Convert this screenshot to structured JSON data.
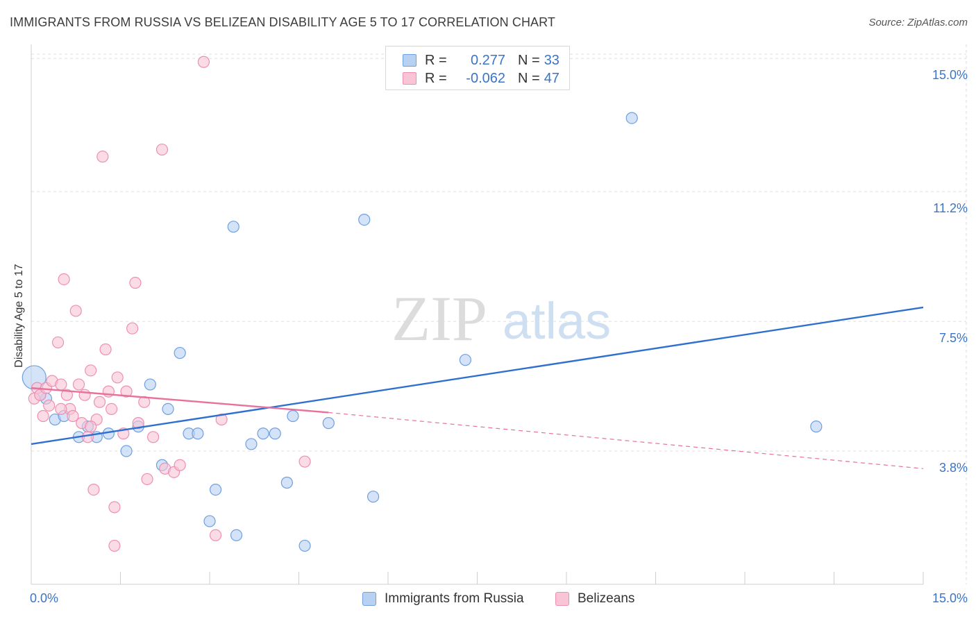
{
  "header": {
    "title": "IMMIGRANTS FROM RUSSIA VS BELIZEAN DISABILITY AGE 5 TO 17 CORRELATION CHART",
    "source": "Source: ZipAtlas.com"
  },
  "watermark": {
    "zip": "ZIP",
    "atlas": "atlas"
  },
  "legend_top": {
    "rows": [
      {
        "r_label": "R =",
        "r_value": "0.277",
        "n_label": "N =",
        "n_value": "33"
      },
      {
        "r_label": "R =",
        "r_value": "-0.062",
        "n_label": "N =",
        "n_value": "47"
      }
    ]
  },
  "colors": {
    "blue_fill": "#b8d0f2",
    "blue_stroke": "#6f9fe0",
    "blue_line": "#2f6fcf",
    "pink_fill": "#f8c4d6",
    "pink_stroke": "#ee8fb0",
    "pink_line": "#e8709a",
    "grid": "#dedede",
    "axis_text": "#3a74c8"
  },
  "chart_data": {
    "type": "scatter",
    "title": "IMMIGRANTS FROM RUSSIA VS BELIZEAN DISABILITY AGE 5 TO 17 CORRELATION CHART",
    "xlabel": "",
    "ylabel": "Disability Age 5 to 17",
    "xlim": [
      0,
      15
    ],
    "ylim": [
      0,
      15.4
    ],
    "x_tick_labels": [
      "0.0%",
      "15.0%"
    ],
    "y_ticks": [
      3.8,
      7.5,
      11.2,
      15.0
    ],
    "y_tick_labels": [
      "3.8%",
      "7.5%",
      "11.2%",
      "15.0%"
    ],
    "series": [
      {
        "name": "Immigrants from Russia",
        "color": "#6f9fe0",
        "points": [
          [
            0.05,
            5.9
          ],
          [
            0.25,
            5.3
          ],
          [
            0.4,
            4.7
          ],
          [
            0.55,
            4.8
          ],
          [
            0.8,
            4.2
          ],
          [
            0.95,
            4.5
          ],
          [
            1.3,
            4.3
          ],
          [
            1.6,
            3.8
          ],
          [
            1.8,
            4.5
          ],
          [
            2.0,
            5.7
          ],
          [
            2.2,
            3.4
          ],
          [
            2.3,
            5.0
          ],
          [
            2.5,
            6.6
          ],
          [
            2.65,
            4.3
          ],
          [
            2.8,
            4.3
          ],
          [
            3.1,
            2.7
          ],
          [
            3.0,
            1.8
          ],
          [
            3.4,
            10.2
          ],
          [
            3.45,
            1.4
          ],
          [
            3.7,
            4.0
          ],
          [
            3.9,
            4.3
          ],
          [
            4.1,
            4.3
          ],
          [
            4.3,
            2.9
          ],
          [
            4.4,
            4.8
          ],
          [
            4.6,
            1.1
          ],
          [
            5.0,
            4.6
          ],
          [
            5.6,
            10.4
          ],
          [
            5.75,
            2.5
          ],
          [
            7.3,
            6.4
          ],
          [
            10.1,
            13.3
          ],
          [
            13.2,
            4.5
          ],
          [
            0.15,
            5.4
          ],
          [
            1.1,
            4.2
          ]
        ]
      },
      {
        "name": "Belizeans",
        "color": "#ee8fb0",
        "points": [
          [
            0.05,
            5.3
          ],
          [
            0.1,
            5.6
          ],
          [
            0.15,
            5.4
          ],
          [
            0.2,
            4.8
          ],
          [
            0.25,
            5.6
          ],
          [
            0.3,
            5.1
          ],
          [
            0.35,
            5.8
          ],
          [
            0.45,
            6.9
          ],
          [
            0.5,
            5.7
          ],
          [
            0.55,
            8.7
          ],
          [
            0.6,
            5.4
          ],
          [
            0.65,
            5.0
          ],
          [
            0.75,
            7.8
          ],
          [
            0.8,
            5.7
          ],
          [
            0.85,
            4.6
          ],
          [
            0.9,
            5.4
          ],
          [
            0.95,
            4.2
          ],
          [
            1.0,
            6.1
          ],
          [
            1.05,
            2.7
          ],
          [
            1.1,
            4.7
          ],
          [
            1.15,
            5.2
          ],
          [
            1.2,
            12.2
          ],
          [
            1.25,
            6.7
          ],
          [
            1.3,
            5.5
          ],
          [
            1.35,
            5.0
          ],
          [
            1.4,
            2.2
          ],
          [
            1.4,
            1.1
          ],
          [
            1.45,
            5.9
          ],
          [
            1.55,
            4.3
          ],
          [
            1.6,
            5.5
          ],
          [
            1.7,
            7.3
          ],
          [
            1.75,
            8.6
          ],
          [
            1.8,
            4.6
          ],
          [
            1.9,
            5.2
          ],
          [
            1.95,
            3.0
          ],
          [
            2.05,
            4.2
          ],
          [
            2.2,
            12.4
          ],
          [
            2.25,
            3.3
          ],
          [
            2.4,
            3.2
          ],
          [
            2.5,
            3.4
          ],
          [
            2.9,
            14.9
          ],
          [
            3.1,
            1.4
          ],
          [
            3.2,
            4.7
          ],
          [
            4.6,
            3.5
          ],
          [
            0.5,
            5.0
          ],
          [
            0.7,
            4.8
          ],
          [
            1.0,
            4.5
          ]
        ]
      }
    ],
    "trend_lines": [
      {
        "name": "Immigrants from Russia",
        "x0": 0.0,
        "y0": 4.0,
        "x1": 15.0,
        "y1": 7.9,
        "style": "solid"
      },
      {
        "name": "Belizeans",
        "x0": 0.0,
        "y0": 5.6,
        "x1": 5.0,
        "y1": 4.9,
        "style": "solid"
      },
      {
        "name": "Belizeans (extended)",
        "x0": 5.0,
        "y0": 4.9,
        "x1": 15.0,
        "y1": 3.3,
        "style": "dashed"
      }
    ]
  },
  "bottom_legend": {
    "items": [
      {
        "label": "Immigrants from Russia"
      },
      {
        "label": "Belizeans"
      }
    ]
  }
}
